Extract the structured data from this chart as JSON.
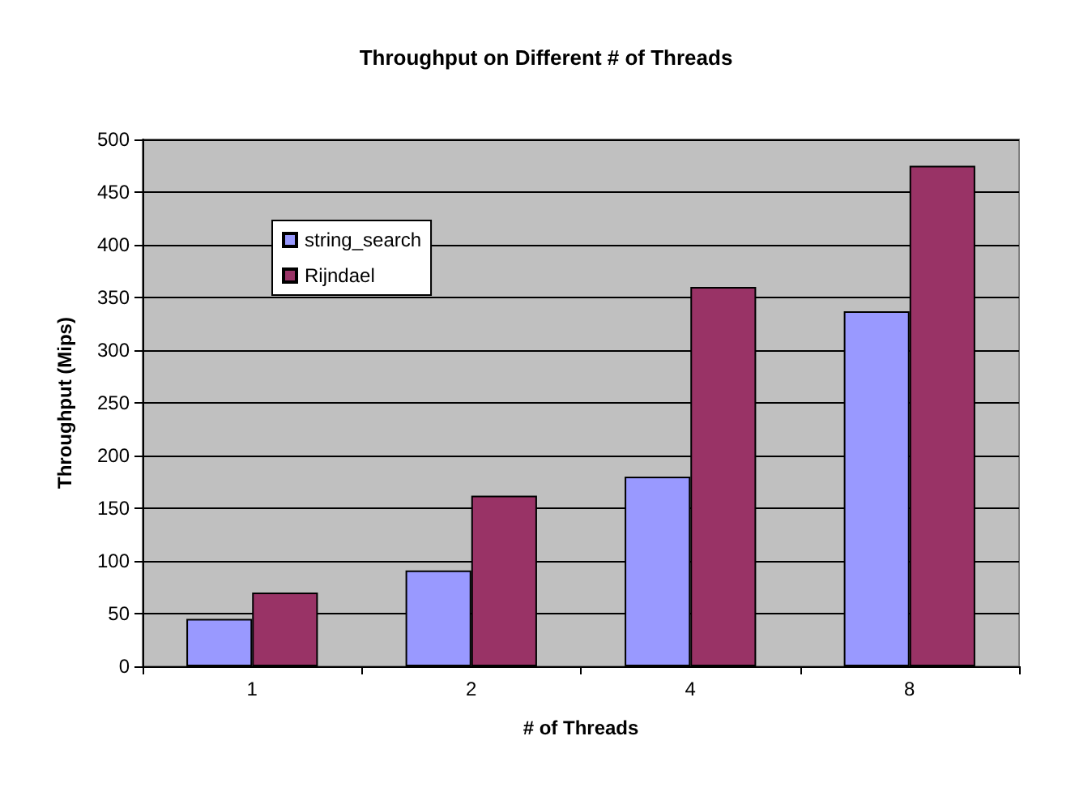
{
  "chart_data": {
    "type": "bar",
    "title": "Throughput on Different # of Threads",
    "xlabel": "# of Threads",
    "ylabel": "Throughput (Mips)",
    "categories": [
      "1",
      "2",
      "4",
      "8"
    ],
    "series": [
      {
        "name": "string_search",
        "color": "#9999ff",
        "values": [
          45,
          91,
          180,
          337
        ]
      },
      {
        "name": "Rijndael",
        "color": "#993366",
        "values": [
          70,
          162,
          360,
          475
        ]
      }
    ],
    "ylim": [
      0,
      500
    ],
    "yticks": [
      0,
      50,
      100,
      150,
      200,
      250,
      300,
      350,
      400,
      450,
      500
    ],
    "grid": "y",
    "legend": "top left"
  }
}
